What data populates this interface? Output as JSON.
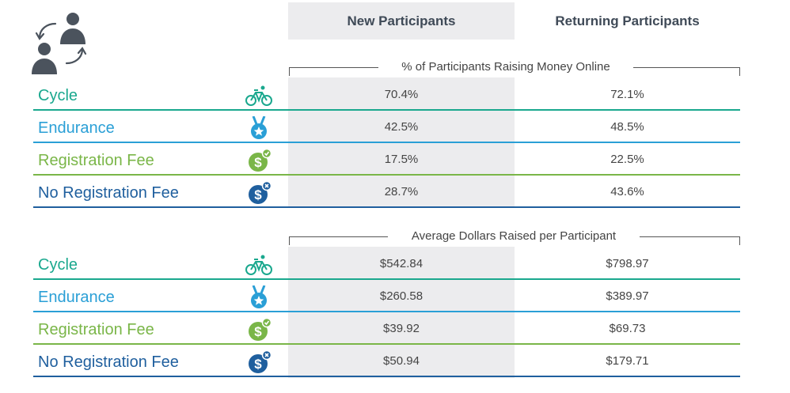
{
  "columns": {
    "new_label": "New Participants",
    "returning_label": "Returning Participants"
  },
  "colors": {
    "cycle": "#1aa88e",
    "endurance": "#2a9fd6",
    "registration_fee": "#7ab648",
    "no_registration_fee": "#1f5f9e",
    "header_icon": "#4b535d"
  },
  "icons": {
    "header": "participants-exchange-icon",
    "cycle": "bicycle-icon",
    "endurance": "medal-icon",
    "registration_fee": "dollar-check-icon",
    "no_registration_fee": "dollar-x-icon"
  },
  "chart_data": [
    {
      "type": "table",
      "title": "% of Participants Raising Money Online",
      "columns": [
        "New Participants",
        "Returning Participants"
      ],
      "rows": [
        {
          "label": "Cycle",
          "new": "70.4%",
          "returning": "72.1%"
        },
        {
          "label": "Endurance",
          "new": "42.5%",
          "returning": "48.5%"
        },
        {
          "label": "Registration Fee",
          "new": "17.5%",
          "returning": "22.5%"
        },
        {
          "label": "No Registration Fee",
          "new": "28.7%",
          "returning": "43.6%"
        }
      ]
    },
    {
      "type": "table",
      "title": "Average Dollars Raised per Participant",
      "columns": [
        "New Participants",
        "Returning Participants"
      ],
      "rows": [
        {
          "label": "Cycle",
          "new": "$542.84",
          "returning": "$798.97"
        },
        {
          "label": "Endurance",
          "new": "$260.58",
          "returning": "$389.97"
        },
        {
          "label": "Registration Fee",
          "new": "$39.92",
          "returning": "$69.73"
        },
        {
          "label": "No Registration Fee",
          "new": "$50.94",
          "returning": "$179.71"
        }
      ]
    }
  ]
}
